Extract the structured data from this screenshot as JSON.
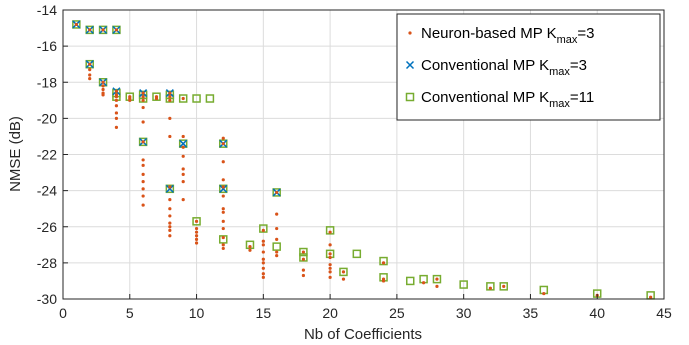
{
  "chart_data": {
    "type": "scatter",
    "title": "",
    "xlabel": "Nb of Coefficients",
    "ylabel": "NMSE (dB)",
    "xlim": [
      0,
      45
    ],
    "ylim": [
      -30,
      -14
    ],
    "xticks": [
      0,
      5,
      10,
      15,
      20,
      25,
      30,
      35,
      40,
      45
    ],
    "yticks": [
      -14,
      -16,
      -18,
      -20,
      -22,
      -24,
      -26,
      -28,
      -30
    ],
    "grid": true,
    "legend_position": "top-right",
    "series": [
      {
        "name": "Neuron-based MP K_max=3",
        "legend_label": "Neuron-based MP K",
        "legend_sub": "max",
        "legend_suffix": "=3",
        "marker": "dot",
        "color": "#D95319",
        "x": [
          1,
          2,
          2,
          2,
          2,
          2,
          3,
          3,
          3,
          3,
          3,
          3,
          4,
          4,
          4,
          4,
          4,
          4,
          4,
          4,
          4,
          5,
          5,
          5,
          6,
          6,
          6,
          6,
          6,
          6,
          6,
          6,
          6,
          6,
          6,
          6,
          6,
          7,
          7,
          8,
          8,
          8,
          8,
          8,
          8,
          8,
          8,
          8,
          8,
          8,
          8,
          8,
          9,
          9,
          9,
          9,
          9,
          9,
          9,
          9,
          10,
          10,
          10,
          10,
          10,
          10,
          12,
          12,
          12,
          12,
          12,
          12,
          12,
          12,
          12,
          12,
          12,
          12,
          12,
          14,
          14,
          15,
          15,
          15,
          15,
          15,
          15,
          15,
          15,
          15,
          16,
          16,
          16,
          16,
          16,
          16,
          18,
          18,
          18,
          18,
          20,
          20,
          20,
          20,
          20,
          20,
          20,
          20,
          21,
          21,
          24,
          24,
          24,
          27,
          28,
          28,
          32,
          33,
          36,
          40,
          44
        ],
        "y": [
          -14.8,
          -15.1,
          -17.0,
          -17.3,
          -17.6,
          -17.8,
          -15.1,
          -18.0,
          -18.2,
          -18.4,
          -18.6,
          -18.7,
          -15.1,
          -18.5,
          -18.7,
          -18.8,
          -19.0,
          -19.3,
          -19.7,
          -20.0,
          -20.5,
          -18.8,
          -18.9,
          -19.0,
          -18.6,
          -18.8,
          -19.0,
          -19.4,
          -20.2,
          -21.3,
          -22.3,
          -22.6,
          -23.1,
          -23.5,
          -23.9,
          -24.3,
          -24.8,
          -18.8,
          -18.9,
          -18.6,
          -18.8,
          -19.0,
          -20.0,
          -21.0,
          -23.8,
          -24.5,
          -25.0,
          -25.4,
          -25.8,
          -26.0,
          -26.2,
          -26.5,
          -18.9,
          -21.0,
          -21.6,
          -22.1,
          -22.8,
          -23.1,
          -23.5,
          -24.5,
          -25.7,
          -26.1,
          -26.3,
          -26.5,
          -26.7,
          -26.9,
          -21.1,
          -21.4,
          -22.4,
          -23.4,
          -23.8,
          -24.3,
          -25.0,
          -25.2,
          -25.7,
          -26.1,
          -26.6,
          -27.0,
          -27.2,
          -27.1,
          -27.3,
          -26.2,
          -26.8,
          -27.0,
          -27.4,
          -27.8,
          -28.0,
          -28.3,
          -28.6,
          -28.8,
          -24.1,
          -25.3,
          -26.1,
          -26.7,
          -27.4,
          -27.6,
          -27.4,
          -27.8,
          -28.4,
          -28.7,
          -26.3,
          -27.0,
          -27.5,
          -27.7,
          -28.1,
          -28.3,
          -28.5,
          -28.8,
          -28.5,
          -28.9,
          -28.0,
          -28.9,
          -29.0,
          -29.1,
          -28.9,
          -29.3,
          -29.4,
          -29.3,
          -29.7,
          -29.8,
          -29.9
        ]
      },
      {
        "name": "Conventional MP K_max=3",
        "legend_label": "Conventional MP K",
        "legend_sub": "max",
        "legend_suffix": "=3",
        "marker": "x",
        "color": "#0072BD",
        "x": [
          1,
          2,
          2,
          3,
          3,
          4,
          4,
          6,
          6,
          8,
          8,
          9,
          12,
          12,
          16
        ],
        "y": [
          -14.8,
          -15.1,
          -17.0,
          -15.1,
          -18.0,
          -15.1,
          -18.5,
          -18.6,
          -21.3,
          -18.6,
          -23.9,
          -21.4,
          -21.4,
          -23.9,
          -24.1
        ]
      },
      {
        "name": "Conventional MP K_max=11",
        "legend_label": "Conventional MP K",
        "legend_sub": "max",
        "legend_suffix": "=11",
        "marker": "square",
        "color": "#77AC30",
        "x": [
          1,
          2,
          2,
          3,
          3,
          4,
          4,
          4,
          5,
          6,
          6,
          6,
          7,
          8,
          8,
          8,
          9,
          9,
          10,
          10,
          11,
          12,
          12,
          12,
          14,
          15,
          16,
          16,
          18,
          18,
          20,
          20,
          21,
          22,
          24,
          24,
          26,
          27,
          28,
          30,
          32,
          33,
          36,
          40,
          44
        ],
        "y": [
          -14.8,
          -15.1,
          -17.0,
          -15.1,
          -18.0,
          -15.1,
          -18.6,
          -18.8,
          -18.8,
          -18.7,
          -18.9,
          -21.3,
          -18.8,
          -18.7,
          -18.9,
          -23.9,
          -18.9,
          -21.4,
          -18.9,
          -25.7,
          -18.9,
          -21.4,
          -23.9,
          -26.7,
          -27.0,
          -26.1,
          -24.1,
          -27.1,
          -27.4,
          -27.7,
          -26.2,
          -27.5,
          -28.5,
          -27.5,
          -27.9,
          -28.8,
          -29.0,
          -28.9,
          -28.9,
          -29.2,
          -29.3,
          -29.3,
          -29.5,
          -29.7,
          -29.8
        ]
      }
    ]
  }
}
